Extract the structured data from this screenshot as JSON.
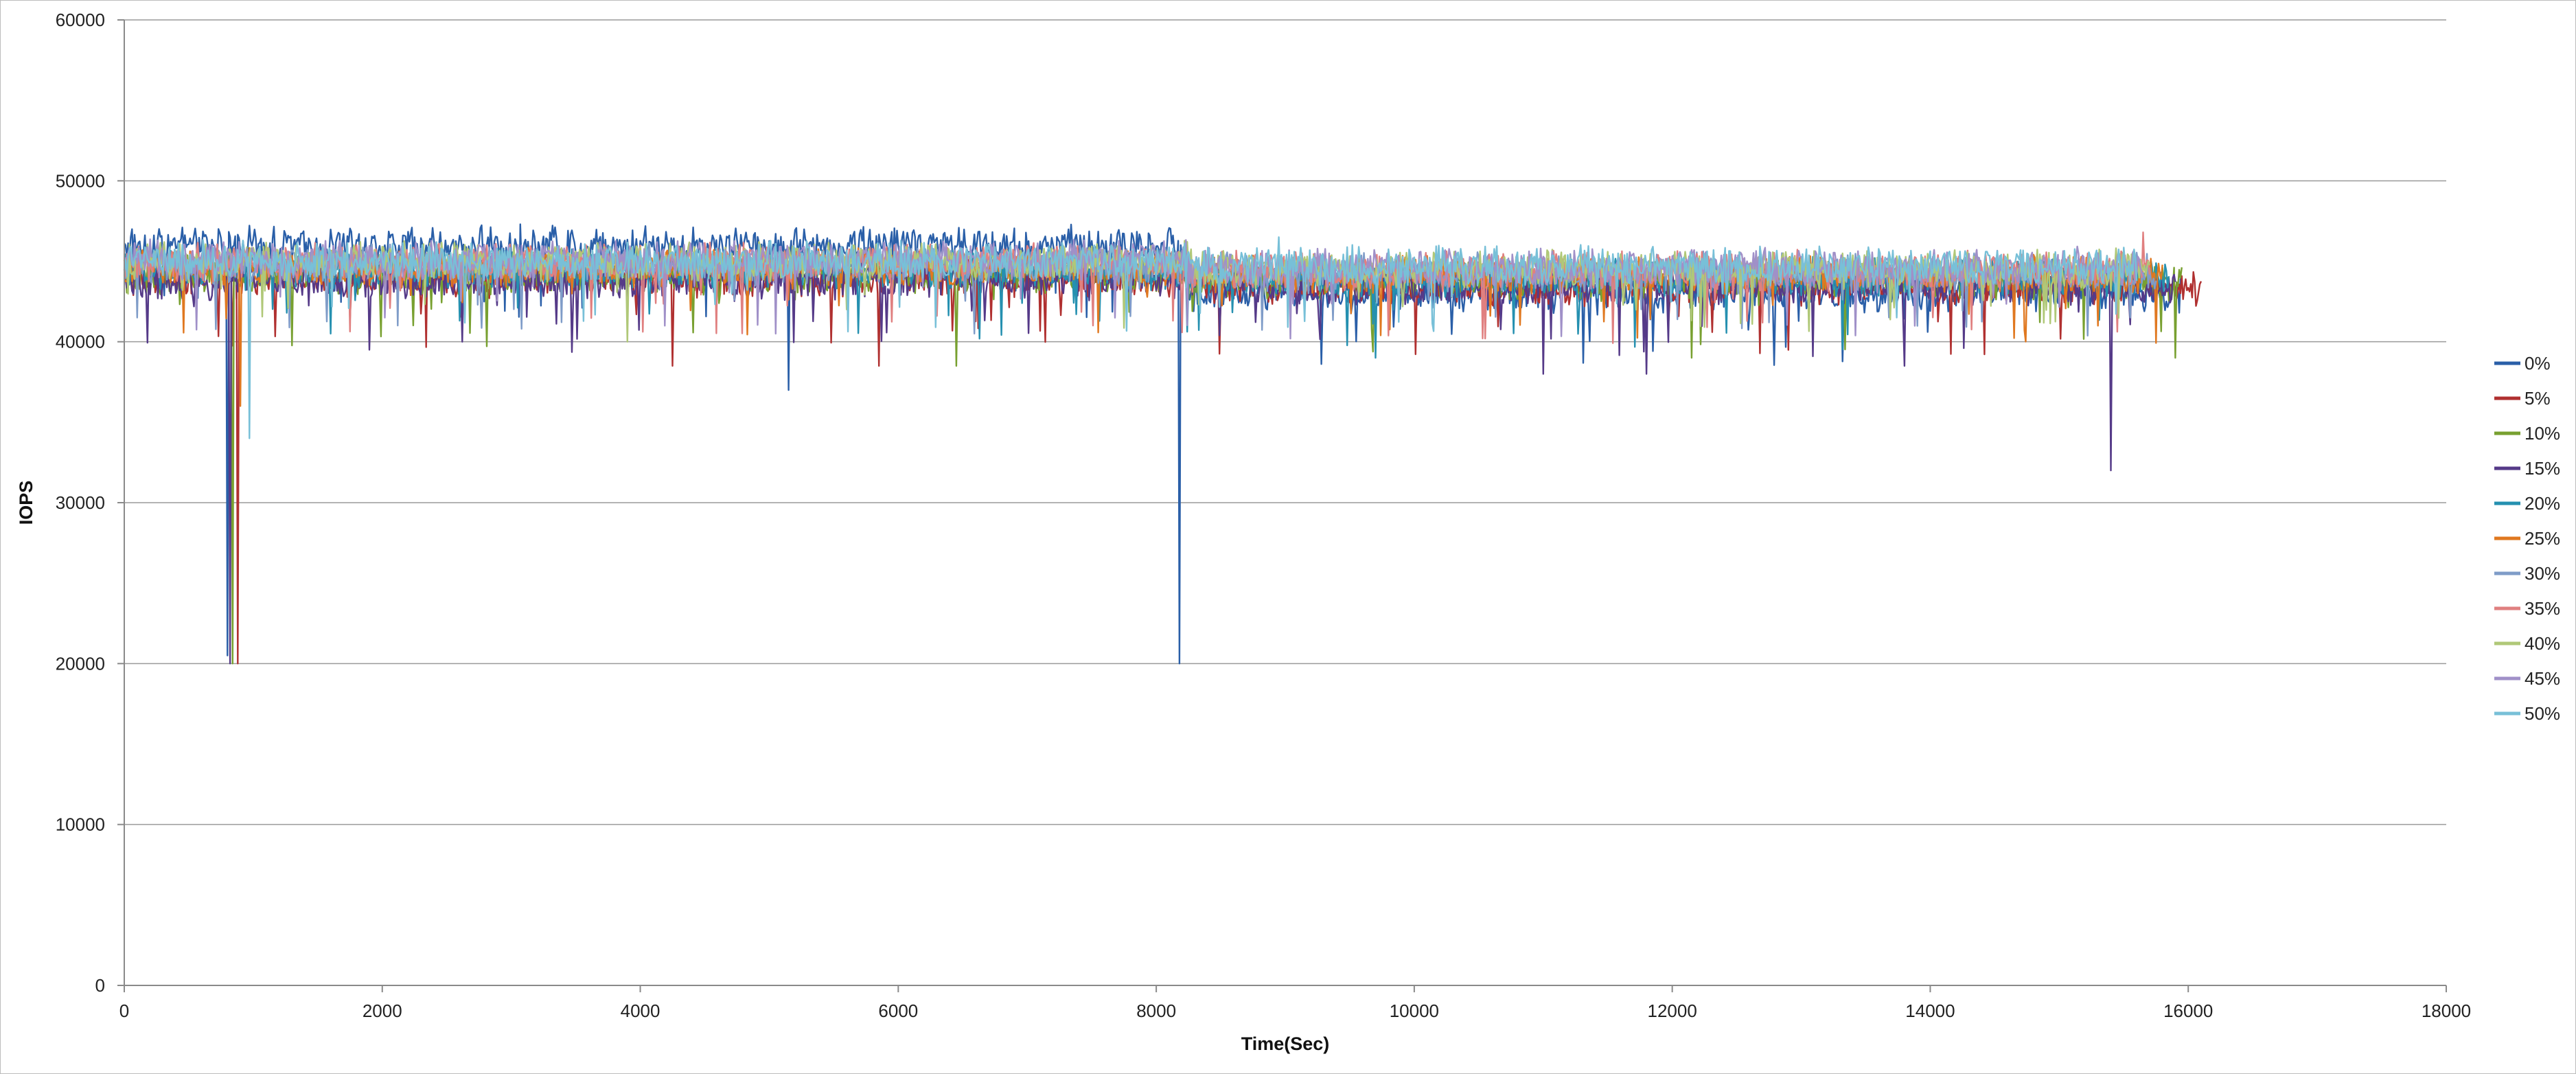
{
  "chart_data": {
    "type": "line",
    "title": "",
    "xlabel": "Time(Sec)",
    "ylabel": "IOPS",
    "xlim": [
      0,
      18000
    ],
    "ylim": [
      0,
      60000
    ],
    "x_ticks": [
      0,
      2000,
      4000,
      6000,
      8000,
      10000,
      12000,
      14000,
      16000,
      18000
    ],
    "y_ticks": [
      0,
      10000,
      20000,
      30000,
      40000,
      50000,
      60000
    ],
    "grid": "horizontal",
    "legend_position": "right",
    "series": [
      {
        "name": "0%",
        "color": "#2a5fa8",
        "x_end": 15950,
        "base": 46000,
        "base2": 43000,
        "switch_at": 8250,
        "spikes": [
          [
            800,
            20500
          ],
          [
            8180,
            20000
          ],
          [
            5150,
            37000
          ]
        ]
      },
      {
        "name": "5%",
        "color": "#b03030",
        "x_end": 16100,
        "base": 44000,
        "base2": 43500,
        "switch_at": 8250,
        "spikes": [
          [
            880,
            20000
          ],
          [
            4250,
            38500
          ],
          [
            5850,
            38500
          ]
        ]
      },
      {
        "name": "10%",
        "color": "#78a030",
        "x_end": 15950,
        "base": 44200,
        "base2": 43800,
        "switch_at": 8250,
        "spikes": [
          [
            840,
            20000
          ],
          [
            6450,
            38500
          ],
          [
            12150,
            39000
          ],
          [
            15900,
            39000
          ]
        ]
      },
      {
        "name": "15%",
        "color": "#553a88",
        "x_end": 15900,
        "base": 43800,
        "base2": 43500,
        "switch_at": 8250,
        "spikes": [
          [
            820,
            20000
          ],
          [
            1900,
            39500
          ],
          [
            11000,
            38000
          ],
          [
            11800,
            38000
          ],
          [
            15400,
            32000
          ],
          [
            13800,
            38500
          ]
        ]
      },
      {
        "name": "20%",
        "color": "#2590b0",
        "x_end": 15850,
        "base": 44500,
        "base2": 44000,
        "switch_at": 8250,
        "spikes": [
          [
            1600,
            40500
          ],
          [
            9700,
            39000
          ]
        ]
      },
      {
        "name": "25%",
        "color": "#e07820",
        "x_end": 15800,
        "base": 44600,
        "base2": 44200,
        "switch_at": 8250,
        "spikes": [
          [
            900,
            36000
          ]
        ]
      },
      {
        "name": "30%",
        "color": "#7f9cc8",
        "x_end": 15750,
        "base": 44800,
        "base2": 44300,
        "switch_at": 8250,
        "spikes": [
          [
            100,
            41500
          ]
        ]
      },
      {
        "name": "35%",
        "color": "#e08080",
        "x_end": 15700,
        "base": 44900,
        "base2": 44400,
        "switch_at": 8250,
        "spikes": [
          [
            15650,
            46800
          ]
        ]
      },
      {
        "name": "40%",
        "color": "#b0c878",
        "x_end": 15700,
        "base": 45000,
        "base2": 44500,
        "switch_at": 8250,
        "spikes": [
          [
            3900,
            40000
          ]
        ]
      },
      {
        "name": "45%",
        "color": "#a090c8",
        "x_end": 15650,
        "base": 45100,
        "base2": 44600,
        "switch_at": 8250,
        "spikes": [
          [
            5050,
            40500
          ]
        ]
      },
      {
        "name": "50%",
        "color": "#78c0d8",
        "x_end": 15600,
        "base": 45000,
        "base2": 44700,
        "switch_at": 8250,
        "spikes": [
          [
            970,
            34000
          ],
          [
            8950,
            46500
          ]
        ]
      }
    ]
  }
}
